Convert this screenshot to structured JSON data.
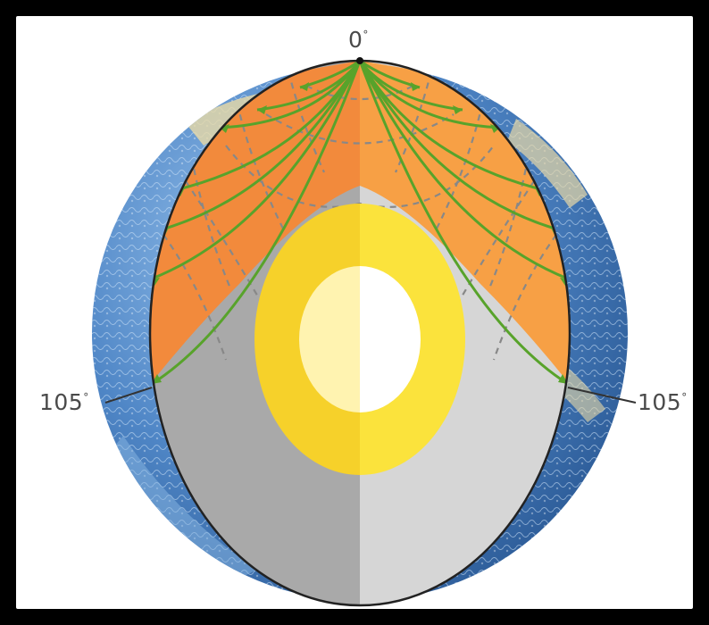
{
  "labels": {
    "top": "0",
    "left": "105",
    "right": "105",
    "degree_symbol": "°"
  },
  "colors": {
    "background": "#000000",
    "frame": "#ffffff",
    "ocean": "#4f86c6",
    "mantle_left": "#f28a3c",
    "mantle_right": "#f7a045",
    "mantle_shadow_left": "#a9a9a9",
    "mantle_shadow_right": "#d6d6d6",
    "outer_core_left": "#f6d12a",
    "outer_core_right": "#fbe33c",
    "inner_core_left": "#fff3b0",
    "inner_core_right": "#ffffff",
    "wave_paths": "#58a32b",
    "wavefronts": "#888888",
    "outline": "#222222"
  }
}
